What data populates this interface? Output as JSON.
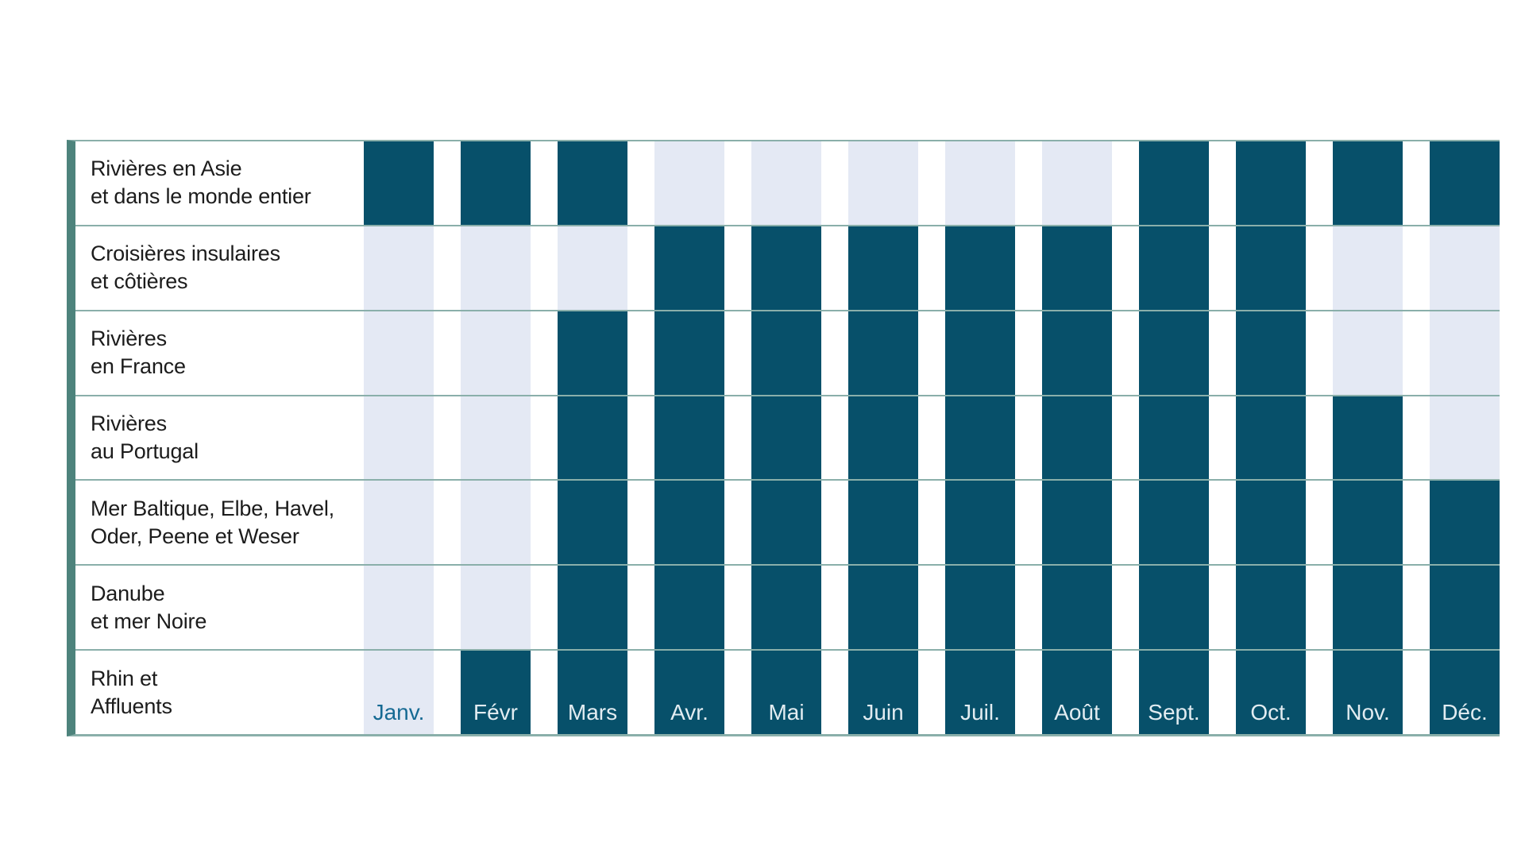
{
  "chart_data": {
    "type": "heatmap",
    "title": "",
    "columns": [
      "Janv.",
      "Févr",
      "Mars",
      "Avr.",
      "Mai",
      "Juin",
      "Juil.",
      "Août",
      "Sept.",
      "Oct.",
      "Nov.",
      "Déc."
    ],
    "rows": [
      {
        "label_lines": [
          "Rivières en Asie",
          "et dans le monde entier"
        ],
        "values": [
          1,
          1,
          1,
          0,
          0,
          0,
          0,
          0,
          1,
          1,
          1,
          1
        ]
      },
      {
        "label_lines": [
          "Croisières insulaires",
          "et côtières"
        ],
        "values": [
          0,
          0,
          0,
          1,
          1,
          1,
          1,
          1,
          1,
          1,
          0,
          0
        ]
      },
      {
        "label_lines": [
          "Rivières",
          "en France"
        ],
        "values": [
          0,
          0,
          1,
          1,
          1,
          1,
          1,
          1,
          1,
          1,
          0,
          0
        ]
      },
      {
        "label_lines": [
          "Rivières",
          "au Portugal"
        ],
        "values": [
          0,
          0,
          1,
          1,
          1,
          1,
          1,
          1,
          1,
          1,
          1,
          0
        ]
      },
      {
        "label_lines": [
          "Mer Baltique, Elbe, Havel,",
          "Oder, Peene et Weser"
        ],
        "values": [
          0,
          0,
          1,
          1,
          1,
          1,
          1,
          1,
          1,
          1,
          1,
          1
        ]
      },
      {
        "label_lines": [
          "Danube",
          "et mer Noire"
        ],
        "values": [
          0,
          0,
          1,
          1,
          1,
          1,
          1,
          1,
          1,
          1,
          1,
          1
        ]
      },
      {
        "label_lines": [
          "Rhin et",
          "Affluents"
        ],
        "values": [
          0,
          1,
          1,
          1,
          1,
          1,
          1,
          1,
          1,
          1,
          1,
          1
        ]
      }
    ],
    "layout_hints": {
      "grid": "horizontal separator lines across full width, thick teal band on left edge",
      "month_labels_position": "bottom row, inside cells",
      "cell_columns": 12,
      "cell_rows": 7
    }
  },
  "colors": {
    "cell_on": "#07506a",
    "cell_off": "#e4e9f4",
    "left_border": "#4d837c",
    "grid_line": "#8aafaa",
    "row_label_text": "#1c1c1c",
    "month_label_on_dark": "#e2ecf1",
    "month_label_on_light": "#166a93"
  }
}
